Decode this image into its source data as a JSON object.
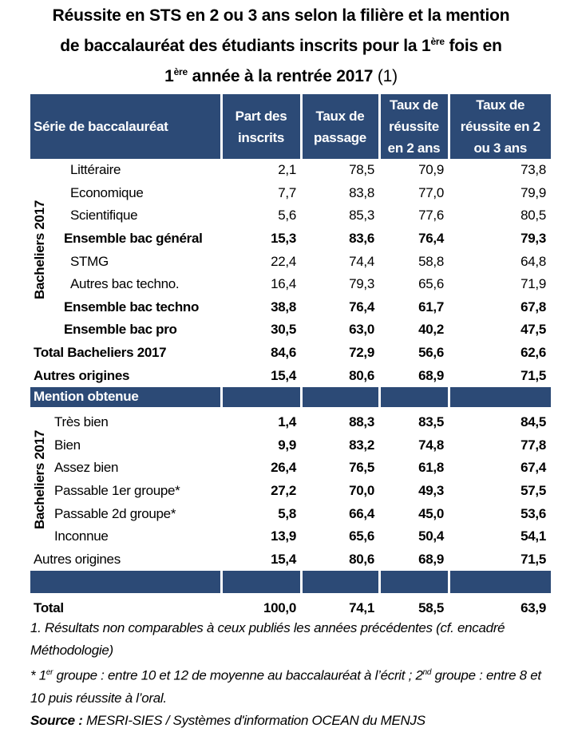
{
  "title": {
    "line1": "Réussite en STS en 2 ou 3 ans selon la filière et la mention",
    "line2_a": "de baccalauréat des étudiants inscrits pour la 1",
    "line2_sup": "ère",
    "line2_b": " fois en",
    "line3_a": "1",
    "line3_sup": "ère",
    "line3_b": " année à la rentrée 2017 ",
    "line3_note": "(1)"
  },
  "table": {
    "headers": [
      "Série de baccalauréat",
      "Part des inscrits",
      "Taux de passage",
      "Taux de réussite en 2 ans",
      "Taux de réussite en 2 ou 3 ans"
    ],
    "group_label": "Bacheliers 2017",
    "section1": [
      {
        "label": "Littéraire",
        "values": [
          "2,1",
          "78,5",
          "70,9",
          "73,8"
        ],
        "bold": false,
        "indent": true
      },
      {
        "label": "Economique",
        "values": [
          "7,7",
          "83,8",
          "77,0",
          "79,9"
        ],
        "bold": false,
        "indent": true
      },
      {
        "label": "Scientifique",
        "values": [
          "5,6",
          "85,3",
          "77,6",
          "80,5"
        ],
        "bold": false,
        "indent": true
      },
      {
        "label": "Ensemble bac général",
        "values": [
          "15,3",
          "83,6",
          "76,4",
          "79,3"
        ],
        "bold": true
      },
      {
        "label": "STMG",
        "values": [
          "22,4",
          "74,4",
          "58,8",
          "64,8"
        ],
        "bold": false,
        "indent": true
      },
      {
        "label": "Autres bac techno.",
        "values": [
          "16,4",
          "79,3",
          "65,6",
          "71,9"
        ],
        "bold": false,
        "indent": true
      },
      {
        "label": "Ensemble bac techno",
        "values": [
          "38,8",
          "76,4",
          "61,7",
          "67,8"
        ],
        "bold": true
      },
      {
        "label": "Ensemble bac pro",
        "values": [
          "30,5",
          "63,0",
          "40,2",
          "47,5"
        ],
        "bold": true
      }
    ],
    "section1_after": [
      {
        "label": "Total Bacheliers 2017",
        "values": [
          "84,6",
          "72,9",
          "56,6",
          "62,6"
        ],
        "bold": true
      },
      {
        "label": "Autres origines",
        "values": [
          "15,4",
          "80,6",
          "68,9",
          "71,5"
        ],
        "bold": true
      }
    ],
    "mention_header": "Mention obtenue",
    "section2": [
      {
        "label": "Très bien",
        "values": [
          "1,4",
          "88,3",
          "83,5",
          "84,5"
        ]
      },
      {
        "label": "Bien",
        "values": [
          "9,9",
          "83,2",
          "74,8",
          "77,8"
        ]
      },
      {
        "label": "Assez bien",
        "values": [
          "26,4",
          "76,5",
          "61,8",
          "67,4"
        ]
      },
      {
        "label": "Passable 1er groupe*",
        "values": [
          "27,2",
          "70,0",
          "49,3",
          "57,5"
        ]
      },
      {
        "label": "Passable 2d groupe*",
        "values": [
          "5,8",
          "66,4",
          "45,0",
          "53,6"
        ]
      },
      {
        "label": "Inconnue",
        "values": [
          "13,9",
          "65,6",
          "50,4",
          "54,1"
        ]
      }
    ],
    "section2_after": [
      {
        "label": "Autres origines",
        "values": [
          "15,4",
          "80,6",
          "68,9",
          "71,5"
        ]
      }
    ],
    "total": {
      "label": "Total",
      "values": [
        "100,0",
        "74,1",
        "58,5",
        "63,9"
      ]
    }
  },
  "notes": {
    "note1": "1. Résultats non comparables à ceux publiés les années précédentes (cf. encadré Méthodologie)",
    "note2_a": "* 1",
    "note2_sup1": "er",
    "note2_b": " groupe : entre 10 et 12 de moyenne au baccalauréat à l’écrit ; 2",
    "note2_sup2": "nd",
    "note2_c": " groupe : entre 8 et 10 puis réussite à l’oral.",
    "source_label": "Source :",
    "source_text": " MESRI-SIES / Systèmes d'information OCEAN du MENJS"
  },
  "colors": {
    "header_bg": "#2c4a76",
    "header_text": "#ffffff"
  }
}
